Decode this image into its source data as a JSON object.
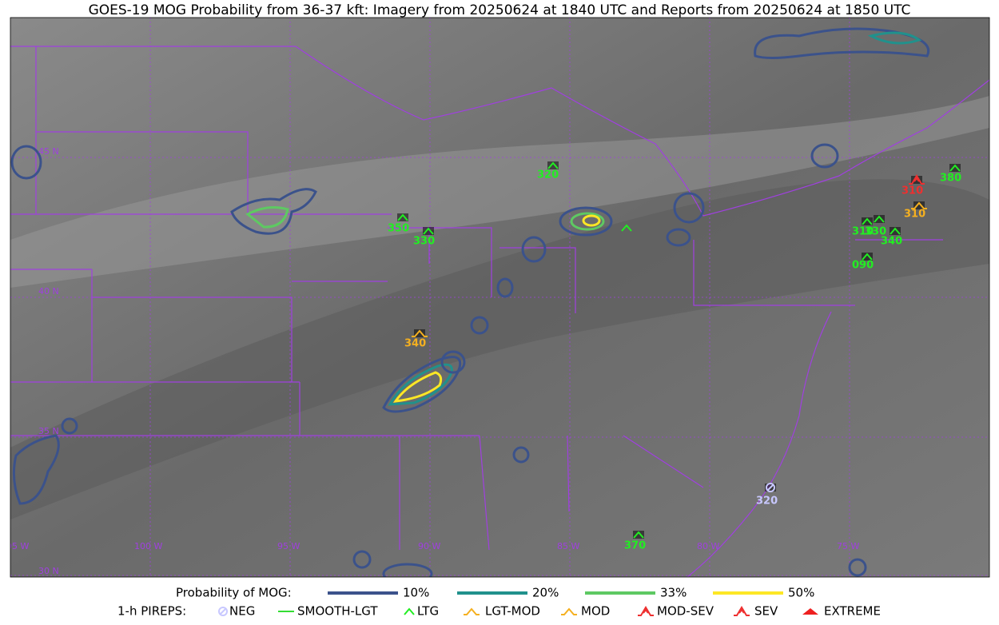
{
  "title": "GOES-19 MOG Probability from 36-37 kft: Imagery from 20250624 at 1840 UTC and Reports from 20250624 at 1850 UTC",
  "grid_labels": {
    "lat": [
      "45 N",
      "40 N",
      "35 N",
      "30 N"
    ],
    "lon": [
      "105 W",
      "100 W",
      "95 W",
      "90 W",
      "85 W",
      "80 W",
      "75 W"
    ]
  },
  "legend": {
    "probability": {
      "label": "Probability of MOG:",
      "items": [
        {
          "label": "10%",
          "color": "#3b528b"
        },
        {
          "label": "20%",
          "color": "#21918c"
        },
        {
          "label": "33%",
          "color": "#5ec962"
        },
        {
          "label": "50%",
          "color": "#fde725"
        }
      ]
    },
    "pireps": {
      "label": "1-h PIREPS:",
      "items": [
        {
          "label": "NEG",
          "color": "#c8c8ff"
        },
        {
          "label": "SMOOTH-LGT",
          "color": "#33dd33"
        },
        {
          "label": "LTG",
          "color": "#22ee22"
        },
        {
          "label": "LGT-MOD",
          "color": "#f5b020"
        },
        {
          "label": "MOD",
          "color": "#f5b020"
        },
        {
          "label": "MOD-SEV",
          "color": "#ee3030"
        },
        {
          "label": "SEV",
          "color": "#ee3030"
        },
        {
          "label": "EXTREME",
          "color": "#ee2020"
        }
      ]
    }
  },
  "reports": [
    {
      "label": "320",
      "category": "LTG"
    },
    {
      "label": "350",
      "category": "LTG"
    },
    {
      "label": "330",
      "category": "LTG"
    },
    {
      "label": "340",
      "category": "MOD"
    },
    {
      "label": "310",
      "category": "MOD-SEV"
    },
    {
      "label": "380",
      "category": "LTG"
    },
    {
      "label": "310",
      "category": "MOD"
    },
    {
      "label": "310",
      "category": "LTG"
    },
    {
      "label": "330",
      "category": "LTG"
    },
    {
      "label": "340",
      "category": "LTG"
    },
    {
      "label": "090",
      "category": "LTG"
    },
    {
      "label": "320",
      "category": "NEG"
    },
    {
      "label": "370",
      "category": "LTG"
    }
  ]
}
